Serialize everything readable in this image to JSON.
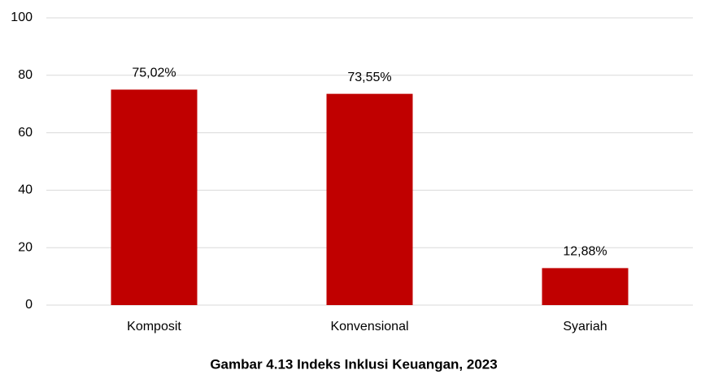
{
  "chart_data": {
    "type": "bar",
    "title": "Gambar 4.13 Indeks Inklusi Keuangan, 2023",
    "categories": [
      "Komposit",
      "Konvensional",
      "Syariah"
    ],
    "values": [
      75.02,
      73.55,
      12.88
    ],
    "value_labels": [
      "75,02%",
      "73,55%",
      "12,88%"
    ],
    "color": "#c00000",
    "ylim": [
      0,
      100
    ],
    "yticks": [
      0,
      20,
      40,
      60,
      80,
      100
    ],
    "grid": true
  }
}
